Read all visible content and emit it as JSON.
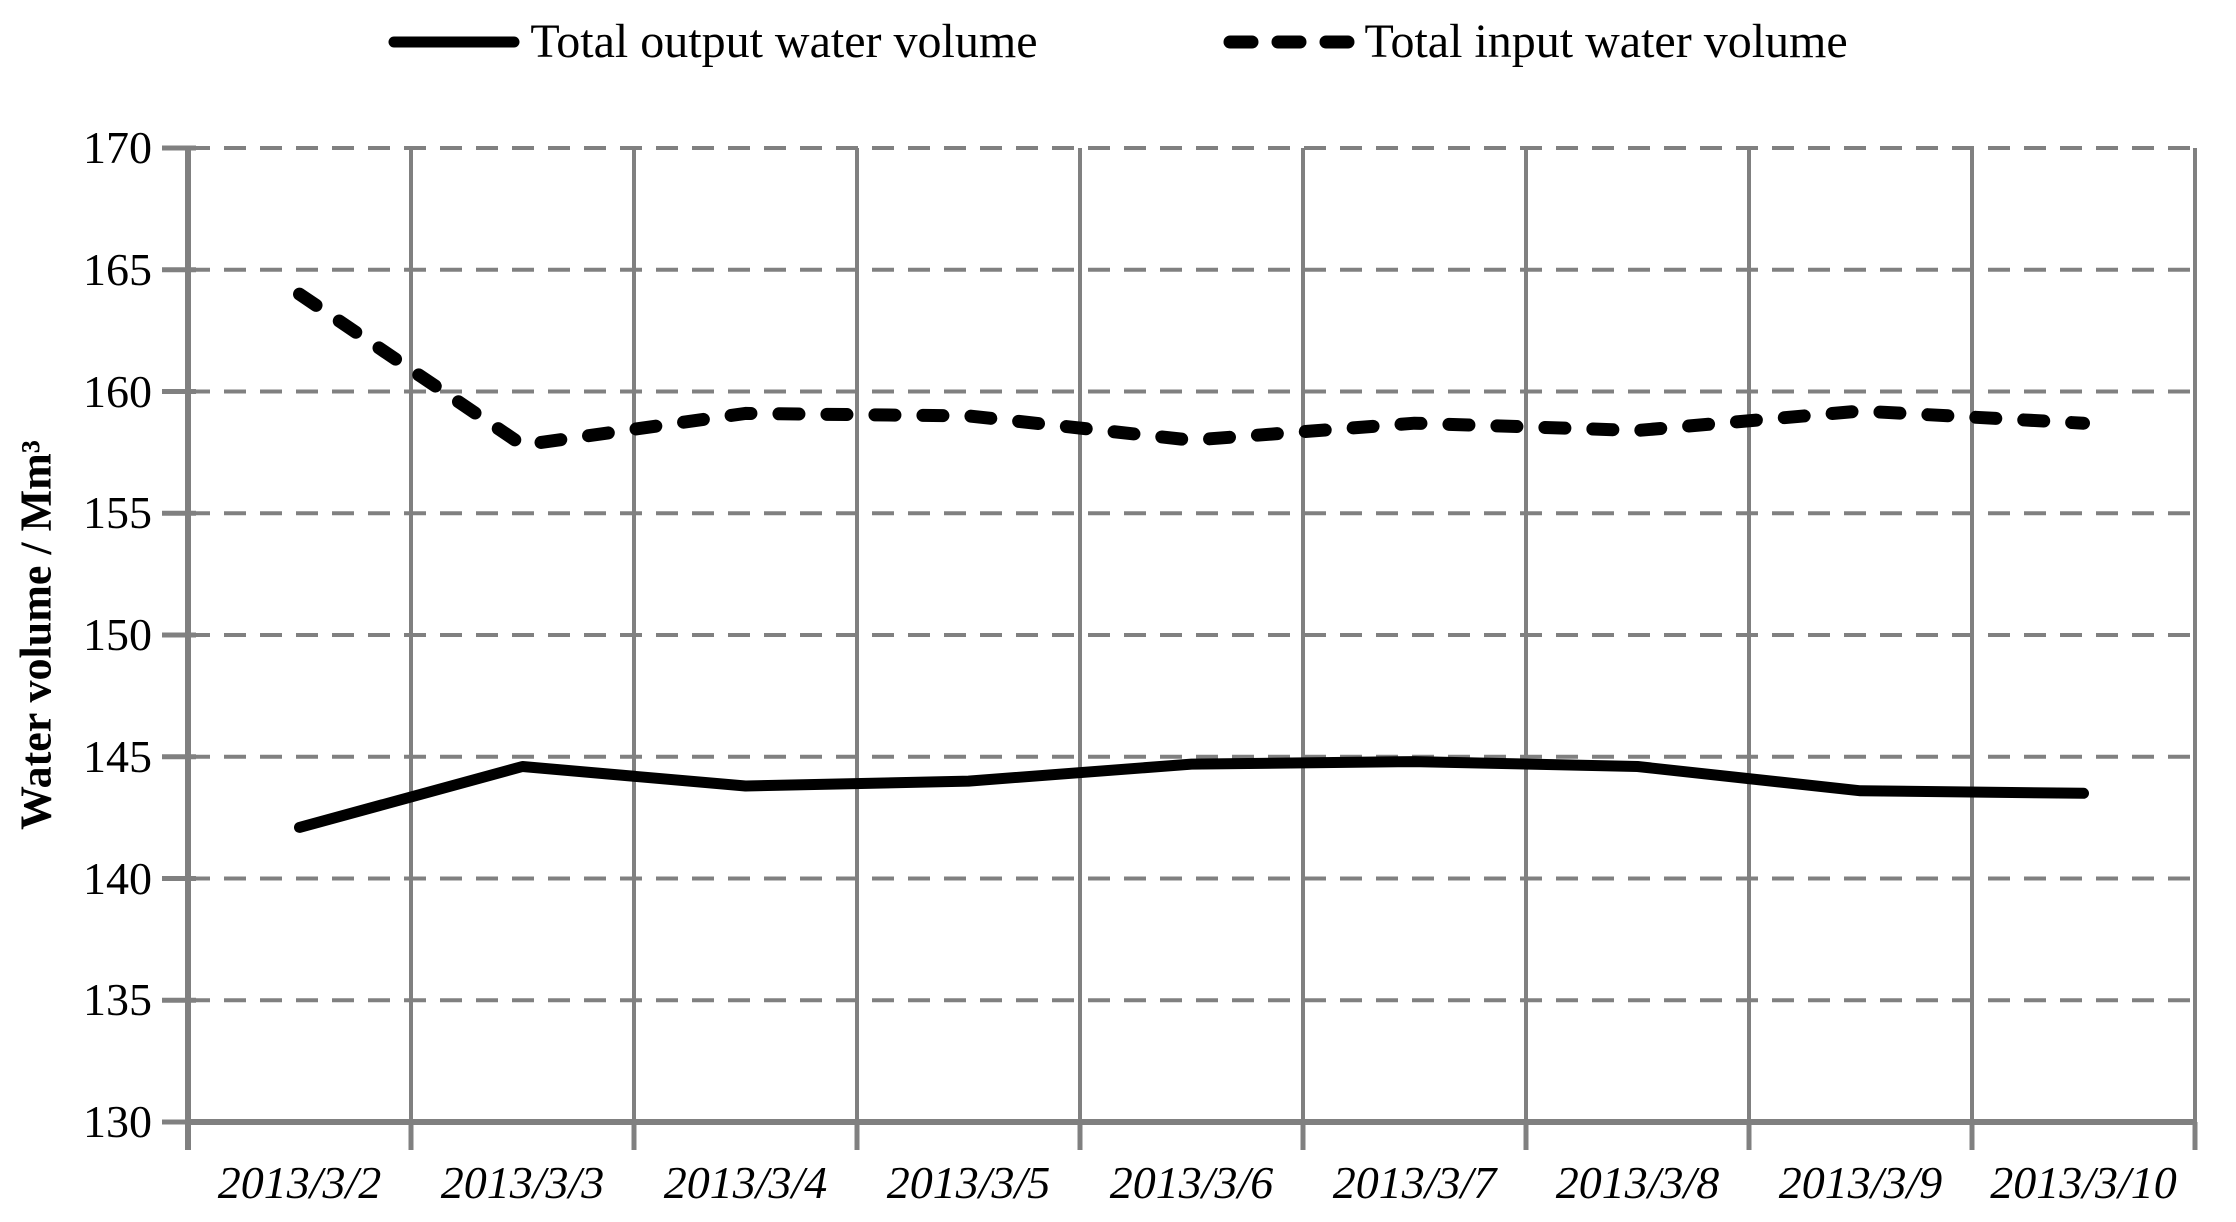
{
  "chart_data": {
    "type": "line",
    "title": "",
    "xlabel": "",
    "ylabel": "Water volume / Mm³",
    "ylim": [
      130,
      170
    ],
    "ytick_step": 5,
    "ytick_labels": [
      "130",
      "135",
      "140",
      "145",
      "150",
      "155",
      "160",
      "165",
      "170"
    ],
    "categories": [
      "2013/3/2",
      "2013/3/3",
      "2013/3/4",
      "2013/3/5",
      "2013/3/6",
      "2013/3/7",
      "2013/3/8",
      "2013/3/9",
      "2013/3/10"
    ],
    "series": [
      {
        "name": "Total output water volume",
        "line_style": "solid",
        "color": "#000000",
        "values": [
          142.1,
          144.6,
          143.8,
          144.0,
          144.7,
          144.8,
          144.6,
          143.6,
          143.5
        ]
      },
      {
        "name": "Total input water volume",
        "line_style": "dashed",
        "color": "#000000",
        "values": [
          164.0,
          157.8,
          159.1,
          159.0,
          158.0,
          158.7,
          158.4,
          159.2,
          158.7
        ]
      }
    ],
    "legend_position": "top",
    "grid": {
      "horizontal": "dashed",
      "vertical": "solid",
      "color": "#808080"
    }
  },
  "colors": {
    "background": "#ffffff",
    "axis": "#808080",
    "grid": "#808080",
    "text": "#000000",
    "series": "#000000"
  }
}
